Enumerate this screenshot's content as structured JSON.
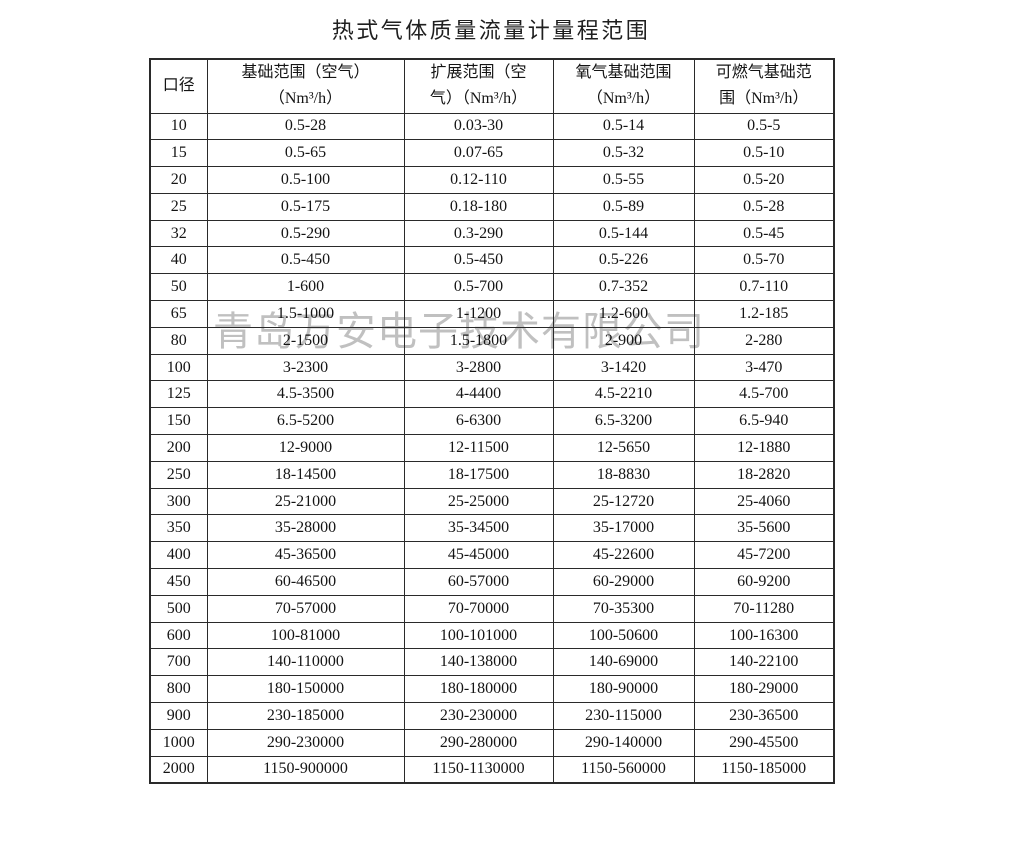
{
  "title": "热式气体质量流量计量程范围",
  "watermark": "青岛万安电子技术有限公司",
  "table": {
    "headers": [
      {
        "line1": "口径",
        "line2": ""
      },
      {
        "line1": "基础范围（空气）",
        "line2": "（Nm³/h）"
      },
      {
        "line1": "扩展范围（空",
        "line2": "气）（Nm³/h）"
      },
      {
        "line1": "氧气基础范围",
        "line2": "（Nm³/h）"
      },
      {
        "line1": "可燃气基础范",
        "line2": "围（Nm³/h）"
      }
    ],
    "rows": [
      [
        "10",
        "0.5-28",
        "0.03-30",
        "0.5-14",
        "0.5-5"
      ],
      [
        "15",
        "0.5-65",
        "0.07-65",
        "0.5-32",
        "0.5-10"
      ],
      [
        "20",
        "0.5-100",
        "0.12-110",
        "0.5-55",
        "0.5-20"
      ],
      [
        "25",
        "0.5-175",
        "0.18-180",
        "0.5-89",
        "0.5-28"
      ],
      [
        "32",
        "0.5-290",
        "0.3-290",
        "0.5-144",
        "0.5-45"
      ],
      [
        "40",
        "0.5-450",
        "0.5-450",
        "0.5-226",
        "0.5-70"
      ],
      [
        "50",
        "1-600",
        "0.5-700",
        "0.7-352",
        "0.7-110"
      ],
      [
        "65",
        "1.5-1000",
        "1-1200",
        "1.2-600",
        "1.2-185"
      ],
      [
        "80",
        "2-1500",
        "1.5-1800",
        "2-900",
        "2-280"
      ],
      [
        "100",
        "3-2300",
        "3-2800",
        "3-1420",
        "3-470"
      ],
      [
        "125",
        "4.5-3500",
        "4-4400",
        "4.5-2210",
        "4.5-700"
      ],
      [
        "150",
        "6.5-5200",
        "6-6300",
        "6.5-3200",
        "6.5-940"
      ],
      [
        "200",
        "12-9000",
        "12-11500",
        "12-5650",
        "12-1880"
      ],
      [
        "250",
        "18-14500",
        "18-17500",
        "18-8830",
        "18-2820"
      ],
      [
        "300",
        "25-21000",
        "25-25000",
        "25-12720",
        "25-4060"
      ],
      [
        "350",
        "35-28000",
        "35-34500",
        "35-17000",
        "35-5600"
      ],
      [
        "400",
        "45-36500",
        "45-45000",
        "45-22600",
        "45-7200"
      ],
      [
        "450",
        "60-46500",
        "60-57000",
        "60-29000",
        "60-9200"
      ],
      [
        "500",
        "70-57000",
        "70-70000",
        "70-35300",
        "70-11280"
      ],
      [
        "600",
        "100-81000",
        "100-101000",
        "100-50600",
        "100-16300"
      ],
      [
        "700",
        "140-110000",
        "140-138000",
        "140-69000",
        "140-22100"
      ],
      [
        "800",
        "180-150000",
        "180-180000",
        "180-90000",
        "180-29000"
      ],
      [
        "900",
        "230-185000",
        "230-230000",
        "230-115000",
        "230-36500"
      ],
      [
        "1000",
        "290-230000",
        "290-280000",
        "290-140000",
        "290-45500"
      ],
      [
        "2000",
        "1150-900000",
        "1150-1130000",
        "1150-560000",
        "1150-185000"
      ]
    ]
  }
}
